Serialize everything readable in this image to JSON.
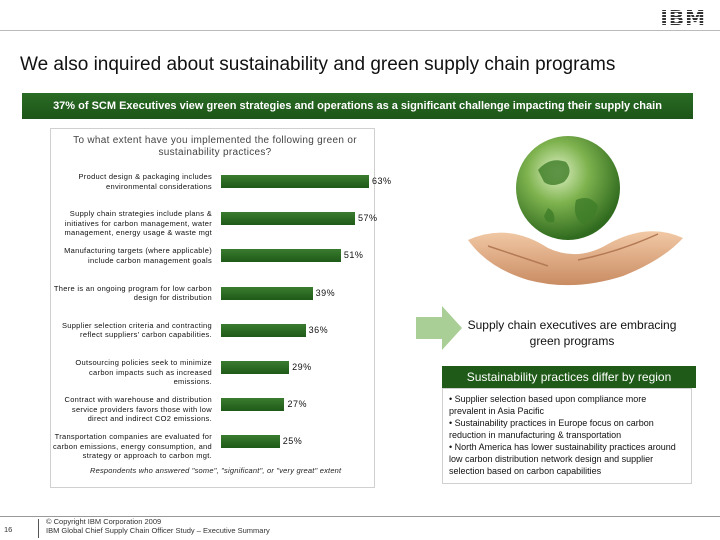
{
  "header": {
    "logo": "IBM",
    "title": "We also inquired about sustainability and green supply chain programs"
  },
  "banner": "37% of SCM Executives view green strategies and operations as a significant challenge impacting their supply chain",
  "survey": {
    "question": "To what extent have you implemented the following green or sustainability practices?",
    "respondents": "Respondents who answered \"some\", \"significant\", or \"very great\" extent"
  },
  "chart_data": {
    "type": "bar",
    "orientation": "horizontal",
    "categories": [
      "Product design & packaging includes environmental considerations",
      "Supply chain strategies include plans & initiatives for carbon management, water management, energy usage & waste mgt",
      "Manufacturing targets (where applicable) include carbon management goals",
      "There is an ongoing program for low carbon design for distribution",
      "Supplier selection criteria and contracting reflect suppliers' carbon capabilities.",
      "Outsourcing policies seek to minimize carbon impacts such as increased emissions.",
      "Contract with warehouse and distribution service providers favors those with low direct and indirect CO2 emissions.",
      "Transportation companies are evaluated for carbon emissions, energy consumption, and strategy or approach to carbon mgt."
    ],
    "values": [
      63,
      57,
      51,
      39,
      36,
      29,
      27,
      25
    ],
    "value_labels": [
      "63%",
      "57%",
      "51%",
      "39%",
      "36%",
      "29%",
      "27%",
      "25%"
    ],
    "xlim": [
      0,
      100
    ],
    "grid": false,
    "bar_color": "#2d6e24"
  },
  "callout": {
    "heading": "Supply chain executives are embracing green programs",
    "region_title": "Sustainability practices differ by region",
    "bullets": [
      "• Supplier selection based upon compliance more prevalent in Asia Pacific",
      "• Sustainability practices in Europe focus on carbon reduction in manufacturing & transportation",
      "• North America has lower sustainability practices around low carbon distribution network design and supplier selection based on carbon capabilities"
    ]
  },
  "footer": {
    "page": "16",
    "copyright": "© Copyright IBM Corporation 2009",
    "source": "IBM Global Chief Supply Chain Officer Study – Executive Summary"
  },
  "colors": {
    "brand_green": "#1f5a18",
    "arrow_green": "#a9cf96"
  }
}
